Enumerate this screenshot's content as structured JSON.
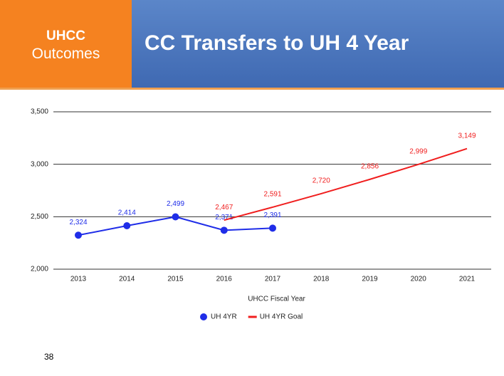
{
  "slide": {
    "tag_title": "UHCC",
    "tag_subtitle": "Outcomes",
    "page_number": "38"
  },
  "chart_data": {
    "type": "line",
    "title": "CC Transfers to UH 4 Year",
    "x_label": "UHCC Fiscal Year",
    "categories": [
      "2013",
      "2014",
      "2015",
      "2016",
      "2017",
      "2018",
      "2019",
      "2020",
      "2021"
    ],
    "series": [
      {
        "name": "UH 4YR",
        "color": "#1f2de8",
        "markers": true,
        "values": [
          2324,
          2414,
          2499,
          2371,
          2391,
          null,
          null,
          null,
          null
        ],
        "value_labels": [
          "2,324",
          "2,414",
          "2,499",
          "2,371",
          "2,391",
          null,
          null,
          null,
          null
        ]
      },
      {
        "name": "UH 4YR Goal",
        "color": "#f01e1e",
        "markers": false,
        "values": [
          null,
          null,
          null,
          2467,
          2591,
          2720,
          2856,
          2999,
          3149
        ],
        "value_labels": [
          null,
          null,
          null,
          "2,467",
          "2,591",
          "2,720",
          "2,856",
          "2,999",
          "3,149"
        ]
      }
    ],
    "ylim": [
      2000,
      3500
    ],
    "yticks": [
      {
        "value": 2000,
        "label": "2,000"
      },
      {
        "value": 2500,
        "label": "2,500"
      },
      {
        "value": 3000,
        "label": "3,000"
      },
      {
        "value": 3500,
        "label": "3,500"
      }
    ],
    "grid": true,
    "legend": "bottom"
  }
}
